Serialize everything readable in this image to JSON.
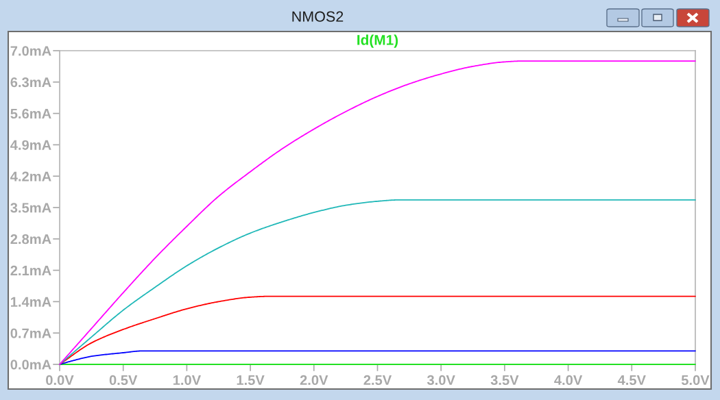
{
  "chart_data": {
    "type": "line",
    "title": "NMOS2",
    "legend": "top",
    "xlim": [
      0,
      5
    ],
    "xticks": [
      {
        "value": 0,
        "label": "0.0V"
      },
      {
        "value": 0.5,
        "label": "0.5V"
      },
      {
        "value": 1,
        "label": "1.0V"
      },
      {
        "value": 1.5,
        "label": "1.5V"
      },
      {
        "value": 2,
        "label": "2.0V"
      },
      {
        "value": 2.5,
        "label": "2.5V"
      },
      {
        "value": 3,
        "label": "3.0V"
      },
      {
        "value": 3.5,
        "label": "3.5V"
      },
      {
        "value": 4,
        "label": "4.0V"
      },
      {
        "value": 4.5,
        "label": "4.5V"
      },
      {
        "value": 5,
        "label": "5.0V"
      }
    ],
    "ylim": [
      0,
      7
    ],
    "yticks": [
      {
        "value": 0,
        "label": "0.0mA"
      },
      {
        "value": 0.7,
        "label": "0.7mA"
      },
      {
        "value": 1.4,
        "label": "1.4mA"
      },
      {
        "value": 2.1,
        "label": "2.1mA"
      },
      {
        "value": 2.8,
        "label": "2.8mA"
      },
      {
        "value": 3.5,
        "label": "3.5mA"
      },
      {
        "value": 4.2,
        "label": "4.2mA"
      },
      {
        "value": 4.9,
        "label": "4.9mA"
      },
      {
        "value": 5.6,
        "label": "5.6mA"
      },
      {
        "value": 6.3,
        "label": "6.3mA"
      },
      {
        "value": 7,
        "label": "7.0mA"
      }
    ],
    "series": [
      {
        "name": "Id(M1)",
        "color": "#22e022",
        "x": [
          0,
          5
        ],
        "values": [
          0,
          0
        ]
      },
      {
        "color": "#0000ff",
        "x": [
          0,
          0.1,
          0.25,
          0.5,
          0.65,
          5
        ],
        "values": [
          0,
          0.08,
          0.18,
          0.26,
          0.3,
          0.3
        ]
      },
      {
        "color": "#ff0000",
        "x": [
          0,
          0.25,
          0.5,
          0.75,
          1.0,
          1.25,
          1.5,
          1.66,
          5
        ],
        "values": [
          0,
          0.48,
          0.78,
          1.02,
          1.24,
          1.4,
          1.5,
          1.52,
          1.52
        ]
      },
      {
        "color": "#20b8b8",
        "x": [
          0,
          0.25,
          0.5,
          0.75,
          1.0,
          1.25,
          1.5,
          1.75,
          2.0,
          2.25,
          2.5,
          2.67,
          5
        ],
        "values": [
          0,
          0.61,
          1.21,
          1.72,
          2.2,
          2.6,
          2.93,
          3.18,
          3.39,
          3.55,
          3.64,
          3.67,
          3.67
        ]
      },
      {
        "color": "#ff00ff",
        "x": [
          0,
          0.25,
          0.5,
          0.75,
          1.0,
          1.25,
          1.5,
          1.75,
          2.0,
          2.25,
          2.5,
          2.75,
          3.0,
          3.25,
          3.5,
          3.65,
          5
        ],
        "values": [
          0,
          0.8,
          1.6,
          2.37,
          3.08,
          3.75,
          4.3,
          4.81,
          5.25,
          5.64,
          5.98,
          6.26,
          6.48,
          6.65,
          6.75,
          6.77,
          6.77
        ]
      }
    ]
  }
}
